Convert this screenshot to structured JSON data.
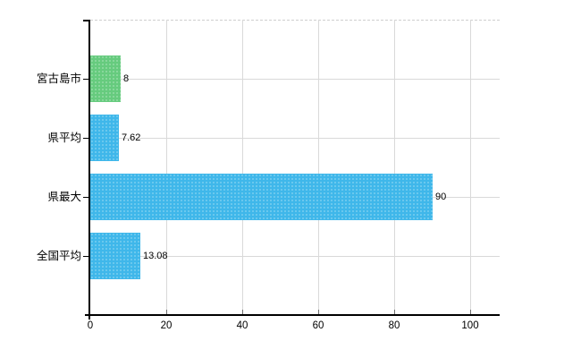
{
  "chart_data": {
    "type": "bar",
    "orientation": "horizontal",
    "title": "",
    "xlabel": "",
    "ylabel": "",
    "categories": [
      "宮古島市",
      "県平均",
      "県最大",
      "全国平均"
    ],
    "values": [
      8,
      7.62,
      90,
      13.08
    ],
    "value_labels": [
      "8",
      "7.62",
      "90",
      "13.08"
    ],
    "bar_colors": [
      "#66cb7e",
      "#3fb7ea",
      "#3fb7ea",
      "#3fb7ea"
    ],
    "xticks": [
      0,
      20,
      40,
      60,
      80,
      100
    ],
    "xtick_labels": [
      "0",
      "20",
      "40",
      "60",
      "80",
      "100"
    ],
    "xlim": [
      0,
      107.8
    ],
    "grid": true,
    "legend": false
  },
  "colors": {
    "highlight_bar": "#66cb7e",
    "default_bar": "#3fb7ea",
    "gridline": "#d9d9d9",
    "plot_top_border": "#cfcfcf",
    "axis": "#000000",
    "text": "#000000",
    "background": "#ffffff"
  }
}
